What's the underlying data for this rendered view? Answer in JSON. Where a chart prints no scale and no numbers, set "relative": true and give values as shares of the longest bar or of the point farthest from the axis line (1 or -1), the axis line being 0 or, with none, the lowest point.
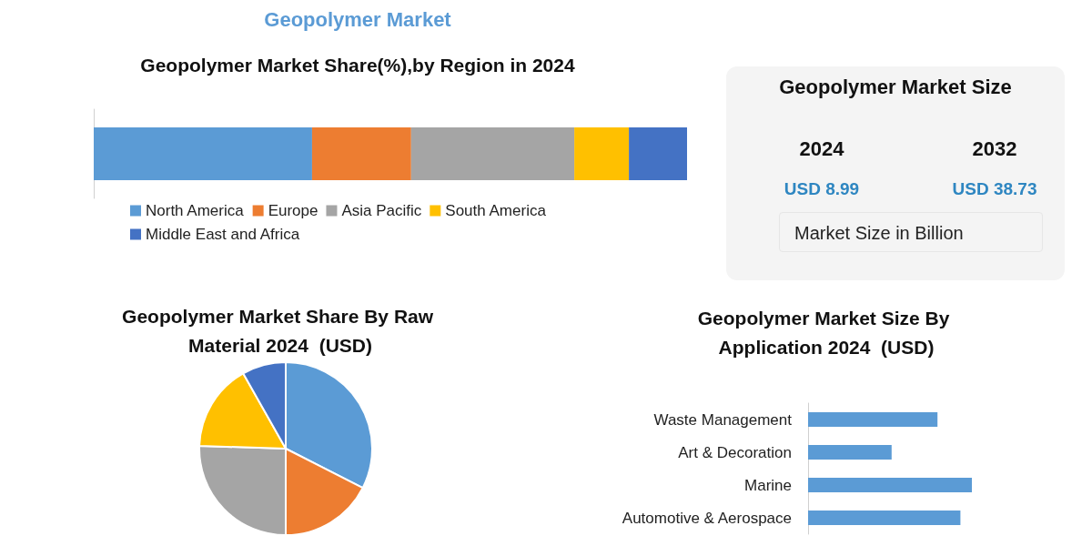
{
  "chart_data": [
    {
      "type": "bar",
      "title": "Geopolymer Market Share(%),by Region in 2024",
      "annotations": [
        "Geopolymer Market"
      ],
      "orientation": "horizontal",
      "stacked": true,
      "relative": true,
      "categories": [
        null
      ],
      "legend": "bottom",
      "series": [
        {
          "name": "North America",
          "color": "#5b9bd5",
          "values": [
            0.368
          ]
        },
        {
          "name": "Europe",
          "color": "#ed7d31",
          "values": [
            0.167
          ]
        },
        {
          "name": "Asia Pacific",
          "color": "#a5a5a5",
          "values": [
            0.275
          ]
        },
        {
          "name": "South America",
          "color": "#ffc000",
          "values": [
            0.092
          ]
        },
        {
          "name": "Middle East and Africa",
          "color": "#4472c4",
          "values": [
            0.098
          ]
        }
      ]
    },
    {
      "type": "other",
      "title": "Geopolymer Market Size",
      "annotations": [
        "2024",
        "2032",
        "USD 8.99",
        "USD 38.73",
        "Market Size in Billion"
      ]
    },
    {
      "type": "pie",
      "title": "Geopolymer Market Share By Raw Material 2024  (USD)",
      "categories": [
        null,
        null,
        null,
        null,
        null
      ],
      "values": [
        32.5,
        17.5,
        25.5,
        16.3,
        8.2
      ],
      "colors": [
        "#5b9bd5",
        "#ed7d31",
        "#a5a5a5",
        "#ffc000",
        "#4472c4"
      ]
    },
    {
      "type": "bar",
      "title": "Geopolymer Market Size By Application 2024  (USD)",
      "orientation": "horizontal",
      "relative": true,
      "categories": [
        "Waste Management",
        "Art & Decoration",
        "Marine",
        "Automotive & Aerospace"
      ],
      "color": "#5b9bd5",
      "values": [
        0.79,
        0.51,
        1,
        0.93
      ]
    }
  ]
}
